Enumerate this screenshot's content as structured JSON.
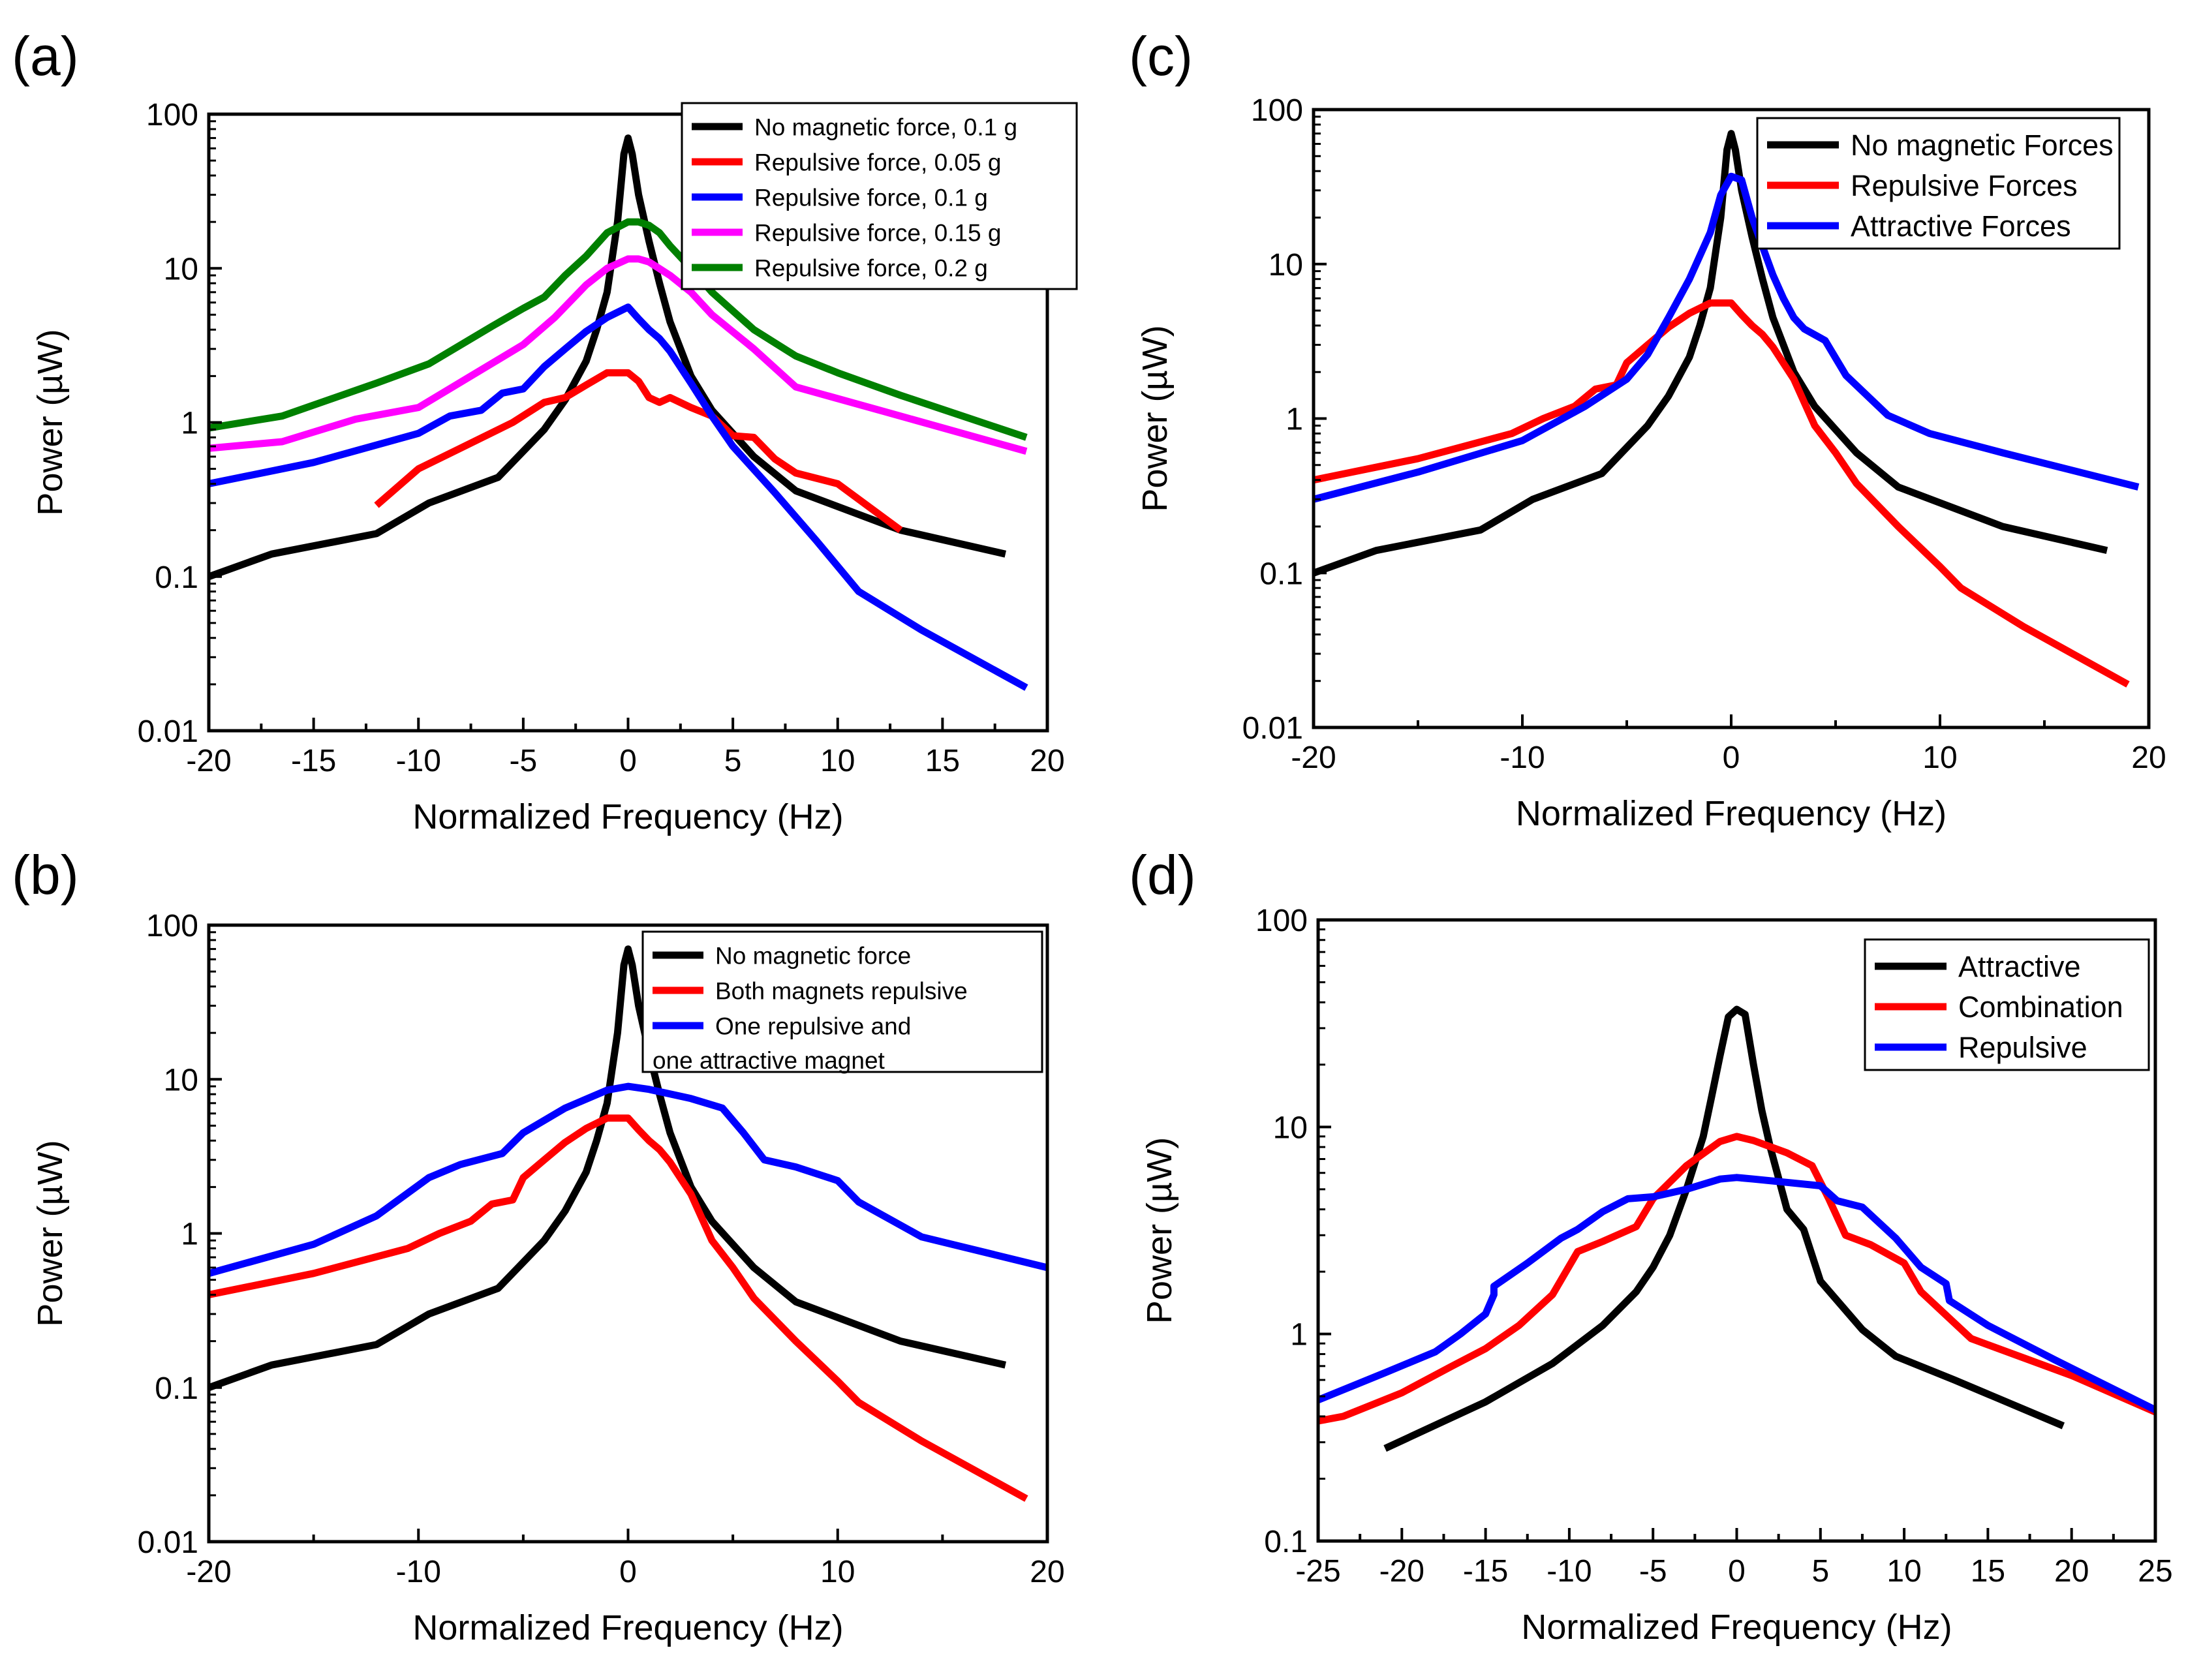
{
  "chart_data": [
    {
      "panel": "(a)",
      "type": "line",
      "yscale": "log",
      "xlim": [
        -20,
        20
      ],
      "ylim": [
        0.01,
        100
      ],
      "xticks": [
        -20,
        -15,
        -10,
        -5,
        0,
        5,
        10,
        15,
        20
      ],
      "xtick_labels": [
        "-20",
        "-15",
        "-10",
        "-5",
        "0",
        "5",
        "10",
        "15",
        "20"
      ],
      "yticks": [
        0.01,
        0.1,
        1,
        10,
        100
      ],
      "ytick_labels": [
        "0.01",
        "0.1",
        "1",
        "10",
        "100"
      ],
      "xlabel": "Normalized Frequency (Hz)",
      "ylabel": "Power (µW)",
      "legend_position": "top-right",
      "series": [
        {
          "name": "No magnetic force, 0.1 g",
          "color": "#000000",
          "x": [
            -20,
            -17,
            -12,
            -9.5,
            -6.2,
            -5,
            -4,
            -3,
            -2,
            -1.5,
            -1,
            -0.5,
            -0.2,
            0,
            0.2,
            0.5,
            1,
            1.5,
            2,
            3,
            4,
            6,
            8,
            13,
            18
          ],
          "y": [
            0.1,
            0.14,
            0.19,
            0.3,
            0.44,
            0.65,
            0.9,
            1.4,
            2.5,
            4,
            7,
            20,
            55,
            70,
            55,
            30,
            15,
            8,
            4.5,
            2,
            1.2,
            0.6,
            0.36,
            0.2,
            0.14
          ]
        },
        {
          "name": "Repulsive force, 0.05 g",
          "color": "#ff0000",
          "x": [
            -12,
            -10,
            -8,
            -5.5,
            -4,
            -3,
            -2,
            -1,
            0,
            0.5,
            1,
            1.5,
            2,
            3,
            4,
            5,
            6,
            7,
            8,
            10,
            13
          ],
          "y": [
            0.29,
            0.5,
            0.68,
            1,
            1.35,
            1.45,
            1.75,
            2.1,
            2.1,
            1.85,
            1.45,
            1.35,
            1.45,
            1.25,
            1.1,
            0.82,
            0.8,
            0.58,
            0.47,
            0.4,
            0.2
          ]
        },
        {
          "name": "Repulsive force, 0.1 g",
          "color": "#0000ff",
          "x": [
            -20,
            -15,
            -10,
            -8.5,
            -7,
            -6,
            -5,
            -4,
            -3,
            -2,
            -1,
            0,
            0.5,
            1,
            1.5,
            2,
            3,
            4,
            5,
            7,
            9,
            11,
            14,
            19
          ],
          "y": [
            0.4,
            0.55,
            0.85,
            1.1,
            1.2,
            1.55,
            1.65,
            2.3,
            3,
            3.9,
            4.8,
            5.6,
            4.7,
            4,
            3.5,
            2.9,
            1.8,
            1.1,
            0.7,
            0.35,
            0.17,
            0.08,
            0.045,
            0.019
          ]
        },
        {
          "name": "Repulsive force, 0.15 g",
          "color": "#ff00ff",
          "x": [
            -20,
            -16.5,
            -13,
            -10,
            -7.5,
            -5,
            -3.5,
            -2,
            -1,
            0,
            0.5,
            1,
            2,
            3,
            4,
            6,
            8,
            12,
            19
          ],
          "y": [
            0.68,
            0.75,
            1.05,
            1.25,
            2,
            3.2,
            4.8,
            7.8,
            10,
            11.5,
            11.5,
            11,
            9,
            7,
            5,
            3,
            1.7,
            1.2,
            0.65
          ]
        },
        {
          "name": "Repulsive force, 0.2 g",
          "color": "#008000",
          "x": [
            -20,
            -16.5,
            -12,
            -9.5,
            -6.5,
            -5,
            -4,
            -3,
            -2,
            -1,
            0,
            0.5,
            1,
            1.5,
            2,
            3,
            4,
            6,
            8,
            10,
            13,
            19
          ],
          "y": [
            0.92,
            1.1,
            1.8,
            2.4,
            4.2,
            5.5,
            6.5,
            9,
            12,
            17,
            20,
            20,
            19,
            17,
            14,
            10,
            7,
            4,
            2.7,
            2.1,
            1.5,
            0.8
          ]
        }
      ]
    },
    {
      "panel": "(b)",
      "type": "line",
      "yscale": "log",
      "xlim": [
        -20,
        20
      ],
      "ylim": [
        0.01,
        100
      ],
      "xticks": [
        -20,
        -10,
        0,
        10,
        20
      ],
      "xtick_labels": [
        "-20",
        "-10",
        "0",
        "10",
        "20"
      ],
      "yticks": [
        0.01,
        0.1,
        1,
        10,
        100
      ],
      "ytick_labels": [
        "0.01",
        "0.1",
        "1",
        "10",
        "100"
      ],
      "xlabel": "Normalized Frequency (Hz)",
      "ylabel": "Power (µW)",
      "legend_position": "top-right",
      "series": [
        {
          "name": "No magnetic force",
          "color": "#000000",
          "x": [
            -20,
            -17,
            -12,
            -9.5,
            -6.2,
            -5,
            -4,
            -3,
            -2,
            -1.5,
            -1,
            -0.5,
            -0.2,
            0,
            0.2,
            0.5,
            1,
            1.5,
            2,
            3,
            4,
            6,
            8,
            13,
            18
          ],
          "y": [
            0.1,
            0.14,
            0.19,
            0.3,
            0.44,
            0.65,
            0.9,
            1.4,
            2.5,
            4,
            7,
            20,
            55,
            70,
            55,
            30,
            15,
            8,
            4.5,
            2,
            1.2,
            0.6,
            0.36,
            0.2,
            0.14
          ]
        },
        {
          "name": "Both magnets repulsive",
          "color": "#ff0000",
          "x": [
            -20,
            -15,
            -10.5,
            -9,
            -7.5,
            -6.5,
            -5.5,
            -5,
            -4,
            -3,
            -2,
            -1,
            0,
            0.5,
            1,
            1.5,
            2,
            3,
            4,
            5,
            6,
            8,
            10,
            11,
            14,
            19
          ],
          "y": [
            0.4,
            0.55,
            0.8,
            1,
            1.2,
            1.55,
            1.65,
            2.3,
            3,
            3.9,
            4.8,
            5.6,
            5.6,
            4.7,
            4,
            3.5,
            2.9,
            1.8,
            0.9,
            0.6,
            0.38,
            0.2,
            0.11,
            0.08,
            0.045,
            0.019
          ]
        },
        {
          "name": "One repulsive and one attractive magnet",
          "color": "#0000ff",
          "x": [
            -20,
            -15,
            -12,
            -9.5,
            -8,
            -6,
            -5,
            -3,
            -1,
            0,
            1,
            3,
            4.5,
            5.5,
            6.5,
            8,
            10,
            11,
            14,
            20
          ],
          "y": [
            0.55,
            0.85,
            1.3,
            2.3,
            2.8,
            3.3,
            4.5,
            6.5,
            8.5,
            9,
            8.6,
            7.5,
            6.5,
            4.5,
            3,
            2.7,
            2.2,
            1.6,
            0.95,
            0.6
          ]
        }
      ]
    },
    {
      "panel": "(c)",
      "type": "line",
      "yscale": "log",
      "xlim": [
        -20,
        20
      ],
      "ylim": [
        0.01,
        100
      ],
      "xticks": [
        -20,
        -10,
        0,
        10,
        20
      ],
      "xtick_labels": [
        "-20",
        "-10",
        "0",
        "10",
        "20"
      ],
      "yticks": [
        0.01,
        0.1,
        1,
        10,
        100
      ],
      "ytick_labels": [
        "0.01",
        "0.1",
        "1",
        "10",
        "100"
      ],
      "xlabel": "Normalized Frequency (Hz)",
      "ylabel": "Power (µW)",
      "legend_position": "top-right",
      "series": [
        {
          "name": "No magnetic Forces",
          "color": "#000000",
          "x": [
            -20,
            -17,
            -12,
            -9.5,
            -6.2,
            -5,
            -4,
            -3,
            -2,
            -1.5,
            -1,
            -0.5,
            -0.2,
            0,
            0.2,
            0.5,
            1,
            1.5,
            2,
            3,
            4,
            6,
            8,
            13,
            18
          ],
          "y": [
            0.1,
            0.14,
            0.19,
            0.3,
            0.44,
            0.65,
            0.9,
            1.4,
            2.5,
            4,
            7,
            20,
            55,
            70,
            55,
            30,
            15,
            8,
            4.5,
            2,
            1.2,
            0.6,
            0.36,
            0.2,
            0.14
          ]
        },
        {
          "name": "Repulsive Forces",
          "color": "#ff0000",
          "x": [
            -20,
            -15,
            -10.5,
            -9,
            -7.5,
            -6.5,
            -5.5,
            -5,
            -4,
            -3,
            -2,
            -1,
            0,
            0.5,
            1,
            1.5,
            2,
            3,
            4,
            5,
            6,
            8,
            10,
            11,
            14,
            19
          ],
          "y": [
            0.4,
            0.55,
            0.8,
            1,
            1.2,
            1.55,
            1.65,
            2.3,
            3,
            3.9,
            4.8,
            5.6,
            5.6,
            4.7,
            4,
            3.5,
            2.9,
            1.8,
            0.9,
            0.6,
            0.38,
            0.2,
            0.11,
            0.08,
            0.045,
            0.019
          ]
        },
        {
          "name": "Attractive Forces",
          "color": "#0000ff",
          "x": [
            -20,
            -15,
            -10,
            -7,
            -5,
            -4,
            -3,
            -2,
            -1,
            -0.5,
            0,
            0.5,
            1,
            1.5,
            2,
            2.5,
            3,
            3.5,
            4.5,
            5.5,
            7.5,
            9.5,
            13,
            19.5
          ],
          "y": [
            0.3,
            0.45,
            0.72,
            1.2,
            1.8,
            2.6,
            4.5,
            8,
            16,
            28,
            37,
            35,
            20,
            13,
            8.5,
            6,
            4.5,
            3.8,
            3.2,
            1.9,
            1.05,
            0.8,
            0.6,
            0.36
          ]
        }
      ]
    },
    {
      "panel": "(d)",
      "type": "line",
      "yscale": "log",
      "xlim": [
        -25,
        25
      ],
      "ylim": [
        0.1,
        100
      ],
      "xticks": [
        -25,
        -20,
        -15,
        -10,
        -5,
        0,
        5,
        10,
        15,
        20,
        25
      ],
      "xtick_labels": [
        "-25",
        "-20",
        "-15",
        "-10",
        "-5",
        "0",
        "5",
        "10",
        "15",
        "20",
        "25"
      ],
      "yticks": [
        0.1,
        1,
        10,
        100
      ],
      "ytick_labels": [
        "0.1",
        "1",
        "10",
        "100"
      ],
      "xlabel": "Normalized Frequency (Hz)",
      "ylabel": "Power (µW)",
      "legend_position": "top-right",
      "series": [
        {
          "name": "Attractive",
          "color": "#000000",
          "x": [
            -21,
            -15,
            -11,
            -8,
            -6,
            -5,
            -4,
            -3,
            -2,
            -1.5,
            -1,
            -0.5,
            0,
            0.5,
            1,
            1.5,
            2,
            3,
            4,
            5,
            7.5,
            9.5,
            13,
            19.5
          ],
          "y": [
            0.28,
            0.47,
            0.72,
            1.1,
            1.6,
            2.1,
            3,
            5,
            9,
            14,
            22,
            34,
            37,
            35,
            20,
            12,
            8,
            4,
            3.2,
            1.8,
            1.05,
            0.78,
            0.6,
            0.36
          ]
        },
        {
          "name": "Combination",
          "color": "#ff0000",
          "x": [
            -25,
            -23.5,
            -20,
            -17,
            -15,
            -13,
            -11,
            -9.5,
            -8,
            -6,
            -5,
            -3,
            -1,
            0,
            1,
            3,
            4.5,
            5.5,
            6.5,
            8,
            10,
            11,
            14,
            20,
            25
          ],
          "y": [
            0.38,
            0.4,
            0.52,
            0.7,
            0.85,
            1.1,
            1.55,
            2.5,
            2.8,
            3.3,
            4.5,
            6.5,
            8.5,
            9,
            8.6,
            7.5,
            6.5,
            4.5,
            3,
            2.7,
            2.2,
            1.6,
            0.95,
            0.63,
            0.42
          ]
        },
        {
          "name": "Repulsive",
          "color": "#0000ff",
          "x": [
            -25,
            -21,
            -18,
            -16.5,
            -15,
            -14.5,
            -14.5,
            -12.5,
            -10.5,
            -9.5,
            -8,
            -6.5,
            -5,
            -3,
            -1,
            0,
            1,
            3,
            5,
            6,
            7.5,
            9.5,
            11,
            12.5,
            12.7,
            15,
            19,
            25
          ],
          "y": [
            0.48,
            0.65,
            0.82,
            1,
            1.25,
            1.55,
            1.7,
            2.2,
            2.9,
            3.2,
            3.9,
            4.5,
            4.6,
            5,
            5.6,
            5.7,
            5.6,
            5.4,
            5.2,
            4.4,
            4.1,
            2.9,
            2.1,
            1.75,
            1.45,
            1.1,
            0.75,
            0.43
          ]
        }
      ]
    }
  ],
  "panels": [
    {
      "letter": "(a)"
    },
    {
      "letter": "(b)"
    },
    {
      "letter": "(c)"
    },
    {
      "letter": "(d)"
    }
  ]
}
